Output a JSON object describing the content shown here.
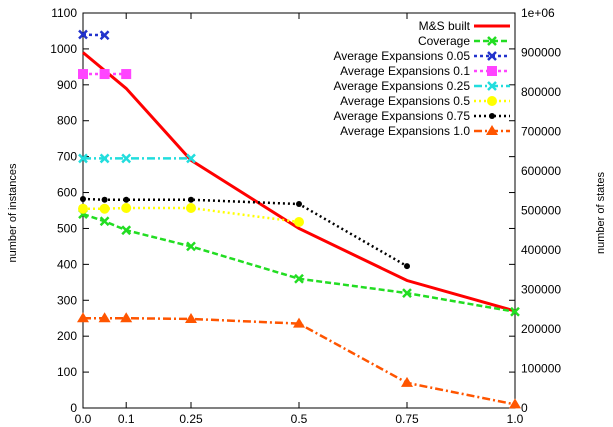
{
  "chart_data": {
    "type": "line",
    "title": "",
    "xlabel": "",
    "ylabel": "number of instances",
    "y2label": "number of states",
    "xlim": [
      0,
      1
    ],
    "ylim": [
      0,
      1100
    ],
    "y2lim": [
      0,
      1000000
    ],
    "grid": false,
    "legend_position": "top-right",
    "xticks": [
      "0.0",
      "0.1",
      "0.25",
      "0.5",
      "0.75",
      "1.0"
    ],
    "yticks": [
      "0",
      "100",
      "200",
      "300",
      "400",
      "500",
      "600",
      "700",
      "800",
      "900",
      "1000",
      "1100"
    ],
    "y2ticks": [
      "0",
      "100000",
      "200000",
      "300000",
      "400000",
      "500000",
      "600000",
      "700000",
      "800000",
      "900000",
      "1e+06"
    ],
    "series": [
      {
        "name": "M&S built",
        "color": "#ff0000",
        "dash": "solid",
        "marker": "none",
        "width": 3,
        "x": [
          0,
          0.1,
          0.25,
          0.5,
          0.75,
          1.0
        ],
        "y": [
          990,
          890,
          690,
          500,
          355,
          270
        ]
      },
      {
        "name": "Coverage",
        "color": "#22dd22",
        "dash": "6,3",
        "marker": "x",
        "width": 2.5,
        "x": [
          0,
          0.05,
          0.1,
          0.25,
          0.5,
          0.75,
          1.0
        ],
        "y": [
          540,
          520,
          495,
          450,
          360,
          320,
          268
        ]
      },
      {
        "name": "Average Expansions 0.05",
        "color": "#2233cc",
        "dash": "3,3",
        "marker": "x",
        "width": 2.5,
        "x": [
          0,
          0.05
        ],
        "y": [
          1040,
          1038
        ]
      },
      {
        "name": "Average Expansions 0.1",
        "color": "#ff44ff",
        "dash": "3,3",
        "marker": "square",
        "width": 2.5,
        "x": [
          0,
          0.05,
          0.1
        ],
        "y": [
          930,
          930,
          930
        ]
      },
      {
        "name": "Average Expansions 0.25",
        "color": "#22dddd",
        "dash": "8,3,2,3",
        "marker": "x",
        "width": 2.5,
        "x": [
          0,
          0.05,
          0.1,
          0.25
        ],
        "y": [
          695,
          695,
          695,
          695
        ]
      },
      {
        "name": "Average Expansions 0.5",
        "color": "#ffff00",
        "dash": "2,3",
        "marker": "circle",
        "width": 2.5,
        "x": [
          0,
          0.05,
          0.1,
          0.25,
          0.5
        ],
        "y": [
          555,
          555,
          557,
          557,
          518
        ]
      },
      {
        "name": "Average Expansions 0.75",
        "color": "#000000",
        "dash": "2,3",
        "marker": "dot",
        "width": 2.5,
        "x": [
          0,
          0.05,
          0.1,
          0.25,
          0.5,
          0.75
        ],
        "y": [
          582,
          580,
          580,
          580,
          568,
          395
        ]
      },
      {
        "name": "Average Expansions 1.0",
        "color": "#ff5500",
        "dash": "8,3,2,3",
        "marker": "triangle",
        "width": 2.5,
        "x": [
          0,
          0.05,
          0.1,
          0.25,
          0.5,
          0.75,
          1.0
        ],
        "y": [
          250,
          250,
          250,
          248,
          235,
          70,
          10
        ]
      }
    ]
  }
}
